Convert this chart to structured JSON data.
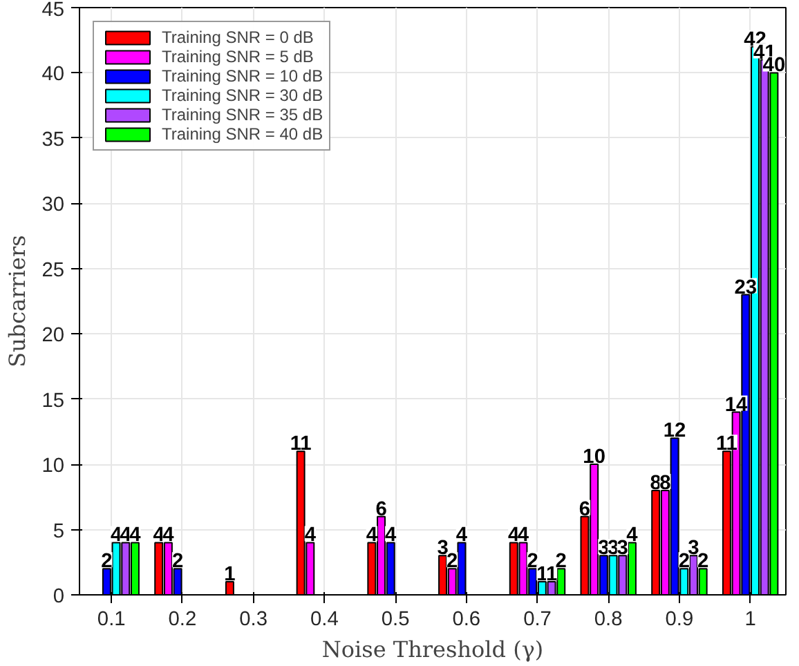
{
  "chart_data": {
    "type": "bar",
    "xlabel": "Noise Threshold (γ)",
    "ylabel": "Subcarriers",
    "categories": [
      "0.1",
      "0.2",
      "0.3",
      "0.4",
      "0.5",
      "0.6",
      "0.7",
      "0.8",
      "0.9",
      "1"
    ],
    "series": [
      {
        "name": "Training SNR = 0 dB",
        "color": "#ff0000",
        "values": [
          0,
          4,
          1,
          11,
          4,
          3,
          4,
          6,
          8,
          11
        ],
        "value_labels": [
          null,
          "4",
          "1",
          "11",
          "4",
          "3",
          "4",
          "6",
          "8",
          "11"
        ]
      },
      {
        "name": "Training SNR = 5 dB",
        "color": "#ff00ff",
        "values": [
          0,
          4,
          0,
          4,
          6,
          2,
          4,
          10,
          8,
          14
        ],
        "value_labels": [
          null,
          "4",
          null,
          "4",
          "6",
          "2",
          "4",
          "10",
          "8",
          "14"
        ]
      },
      {
        "name": "Training SNR = 10 dB",
        "color": "#0000ff",
        "values": [
          2,
          2,
          0,
          0,
          4,
          4,
          2,
          3,
          12,
          23
        ],
        "value_labels": [
          "2",
          "2",
          null,
          null,
          "4",
          "4",
          "2",
          "3",
          "12",
          "23"
        ]
      },
      {
        "name": "Training SNR = 30 dB",
        "color": "#00ffff",
        "values": [
          4,
          0,
          0,
          0,
          0,
          0,
          1,
          3,
          2,
          42
        ],
        "value_labels": [
          "4",
          null,
          null,
          null,
          null,
          null,
          "1",
          "3",
          "2",
          "42"
        ]
      },
      {
        "name": "Training SNR = 35 dB",
        "color": "#b048ff",
        "values": [
          4,
          0,
          0,
          0,
          0,
          0,
          1,
          3,
          3,
          41
        ],
        "value_labels": [
          "4",
          null,
          null,
          null,
          null,
          null,
          "1",
          "3",
          "3",
          "41"
        ]
      },
      {
        "name": "Training SNR = 40 dB",
        "color": "#00ff00",
        "values": [
          4,
          0,
          0,
          0,
          0,
          0,
          2,
          4,
          2,
          40
        ],
        "value_labels": [
          "4",
          null,
          null,
          null,
          null,
          null,
          "2",
          "4",
          "2",
          "40"
        ]
      }
    ],
    "ylim": [
      0,
      45
    ],
    "yticks": [
      0,
      5,
      10,
      15,
      20,
      25,
      30,
      35,
      40,
      45
    ],
    "grid": true,
    "legend": "top left"
  }
}
